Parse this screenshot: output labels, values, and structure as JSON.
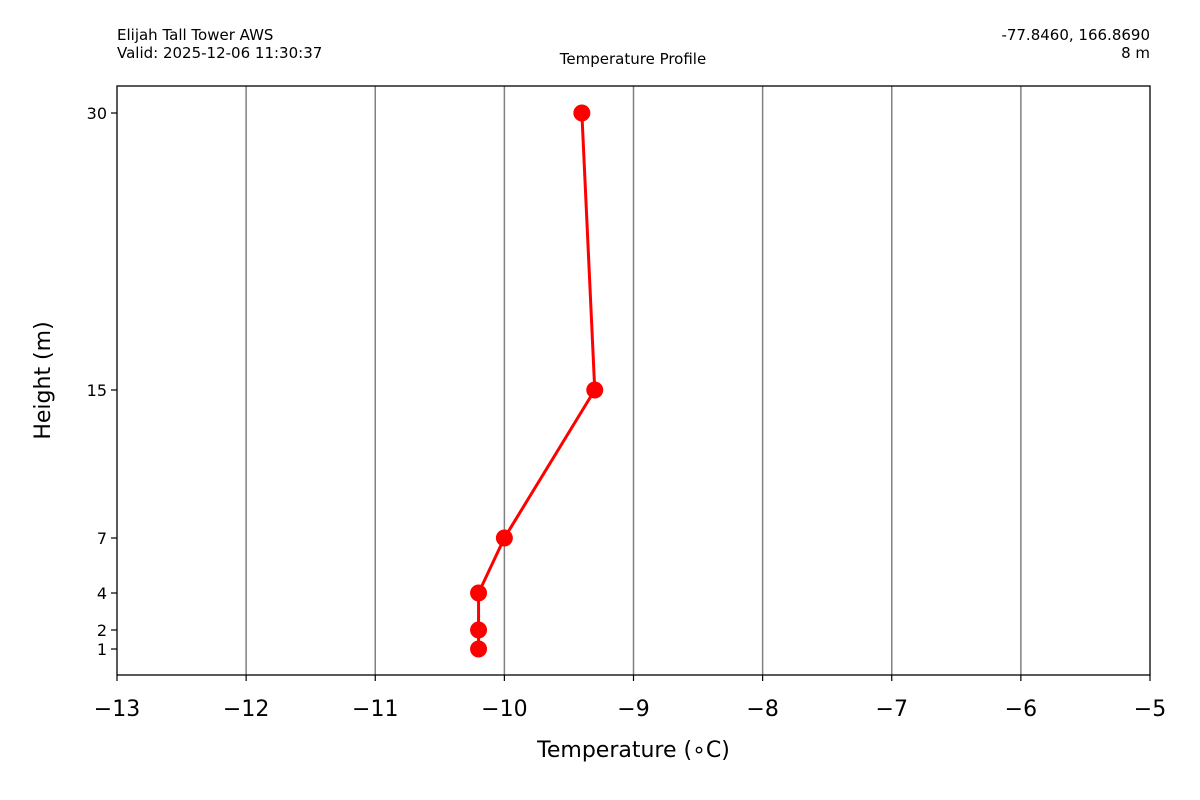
{
  "chart_data": {
    "type": "line",
    "title": "Temperature Profile",
    "station": "Elijah Tall Tower AWS",
    "valid_time": "Valid: 2025-12-06 11:30:37",
    "coordinates": "-77.8460, 166.8690",
    "elevation": "8 m",
    "xlabel": "Temperature (∘C)",
    "ylabel": "Height (m)",
    "xlim": [
      -13,
      -5
    ],
    "ylim": [
      -0.4,
      31.5
    ],
    "x_ticks": [
      -13,
      -12,
      -11,
      -10,
      -9,
      -8,
      -7,
      -6,
      -5
    ],
    "x_tick_labels": [
      "−13",
      "−12",
      "−11",
      "−10",
      "−9",
      "−8",
      "−7",
      "−6",
      "−5"
    ],
    "y_ticks": [
      1,
      2,
      4,
      7,
      15,
      30
    ],
    "y_tick_labels": [
      "1",
      "2",
      "4",
      "7",
      "15",
      "30"
    ],
    "grid": "vertical",
    "series": [
      {
        "color": "#ff0000",
        "points": [
          {
            "x": -10.2,
            "y": 1
          },
          {
            "x": -10.2,
            "y": 2
          },
          {
            "x": -10.2,
            "y": 4
          },
          {
            "x": -10.0,
            "y": 7
          },
          {
            "x": -9.3,
            "y": 15
          },
          {
            "x": -9.4,
            "y": 30
          }
        ]
      }
    ]
  }
}
